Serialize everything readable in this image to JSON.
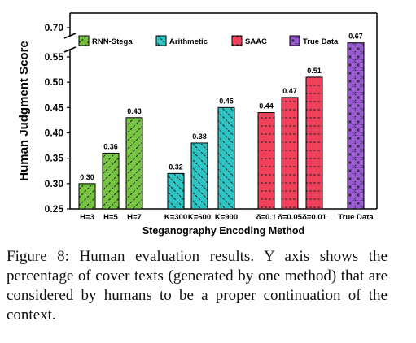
{
  "chart_data": {
    "type": "bar",
    "xlabel": "Steganography Encoding Method",
    "ylabel": "Human Judgment Score",
    "ylim": [
      0.25,
      0.7
    ],
    "axis_break": [
      0.56,
      0.69
    ],
    "yticks": [
      "0.70",
      "0.55",
      "0.50",
      "0.45",
      "0.40",
      "0.35",
      "0.30",
      "0.25"
    ],
    "legend_position": "top",
    "grid": false,
    "series": [
      {
        "name": "RNN-Stega",
        "color": "#76c442",
        "hatch": "diagonal",
        "categories": [
          "H=3",
          "H=5",
          "H=7"
        ],
        "values": [
          0.3,
          0.36,
          0.43
        ],
        "labels": [
          "0.30",
          "0.36",
          "0.43"
        ],
        "legend_label": "RNN-Stega"
      },
      {
        "name": "Arithmetic",
        "color": "#2ec4c4",
        "hatch": "diagonal-dashed",
        "categories": [
          "K=300",
          "K=600",
          "K=900"
        ],
        "values": [
          0.32,
          0.38,
          0.45
        ],
        "labels": [
          "0.32",
          "0.38",
          "0.45"
        ],
        "legend_label": "Arithmetic"
      },
      {
        "name": "SAAC",
        "color": "#f0405a",
        "hatch": "horizontal-dashed",
        "categories": [
          "δ=0.1",
          "δ=0.05",
          "δ=0.01"
        ],
        "values": [
          0.44,
          0.47,
          0.51
        ],
        "labels": [
          "0.44",
          "0.47",
          "0.51"
        ],
        "legend_label": "SAAC"
      },
      {
        "name": "True Data",
        "color": "#9b59d6",
        "hatch": "cross",
        "categories": [
          "True Data"
        ],
        "values": [
          0.67
        ],
        "labels": [
          "0.67"
        ],
        "legend_label": "True Data"
      }
    ]
  },
  "caption": {
    "label": "Figure 8:",
    "text": " Human evaluation results. Y axis shows the percentage of cover texts (generated by one method) that are considered by humans to be a proper continuation of the context."
  }
}
